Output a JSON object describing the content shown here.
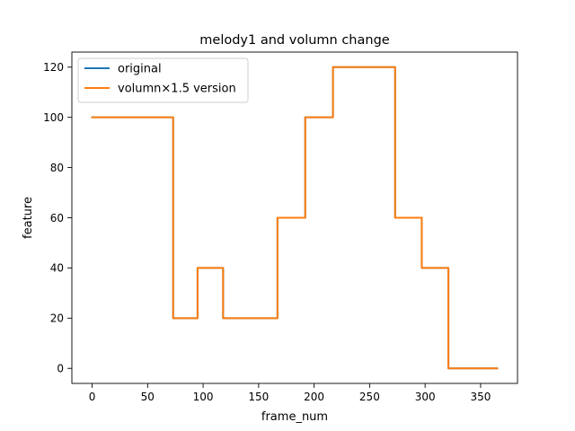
{
  "chart_data": {
    "type": "line",
    "title": "melody1 and volumn change",
    "xlabel": "frame_num",
    "ylabel": "feature",
    "xlim": [
      -18.25,
      383.25
    ],
    "ylim": [
      -6,
      126
    ],
    "xticks": [
      0,
      50,
      100,
      150,
      200,
      250,
      300,
      350
    ],
    "yticks": [
      0,
      20,
      40,
      60,
      80,
      100,
      120
    ],
    "grid": false,
    "legend_position": "top-left",
    "series": [
      {
        "name": "original",
        "color": "#1f77b4",
        "x": [
          0,
          73,
          73,
          95,
          95,
          118,
          118,
          167,
          167,
          192,
          192,
          217,
          217,
          273,
          273,
          297,
          297,
          321,
          321,
          365
        ],
        "y": [
          100,
          100,
          20,
          20,
          40,
          40,
          20,
          20,
          60,
          60,
          100,
          100,
          120,
          120,
          60,
          60,
          40,
          40,
          0,
          0
        ]
      },
      {
        "name": "volumn×1.5 version",
        "color": "#ff7f0e",
        "x": [
          0,
          73,
          73,
          95,
          95,
          118,
          118,
          167,
          167,
          192,
          192,
          217,
          217,
          273,
          273,
          297,
          297,
          321,
          321,
          365
        ],
        "y": [
          100,
          100,
          20,
          20,
          40,
          40,
          20,
          20,
          60,
          60,
          100,
          100,
          120,
          120,
          60,
          60,
          40,
          40,
          0,
          0
        ]
      }
    ]
  }
}
